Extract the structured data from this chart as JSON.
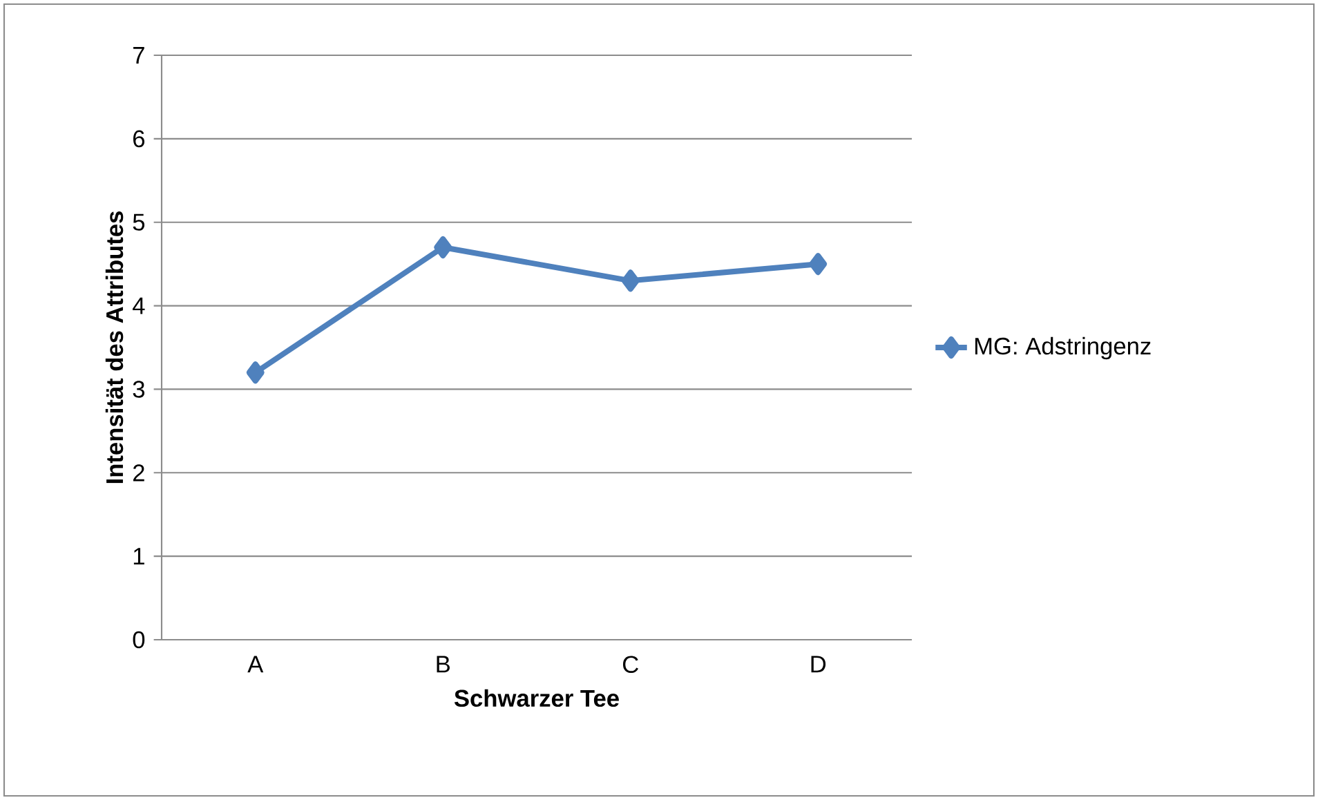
{
  "chart_data": {
    "type": "line",
    "xlabel": "Schwarzer Tee",
    "ylabel": "Intensität des Attributes",
    "categories": [
      "A",
      "B",
      "C",
      "D"
    ],
    "series": [
      {
        "name": "MG: Adstringenz",
        "color": "#4f81bd",
        "values": [
          3.2,
          4.7,
          4.3,
          4.5
        ]
      }
    ],
    "ylim": [
      0,
      7
    ],
    "yticks": [
      0,
      1,
      2,
      3,
      4,
      5,
      6,
      7
    ],
    "grid": "y",
    "legend": "right",
    "marker": "diamond",
    "line_style": "solid"
  }
}
